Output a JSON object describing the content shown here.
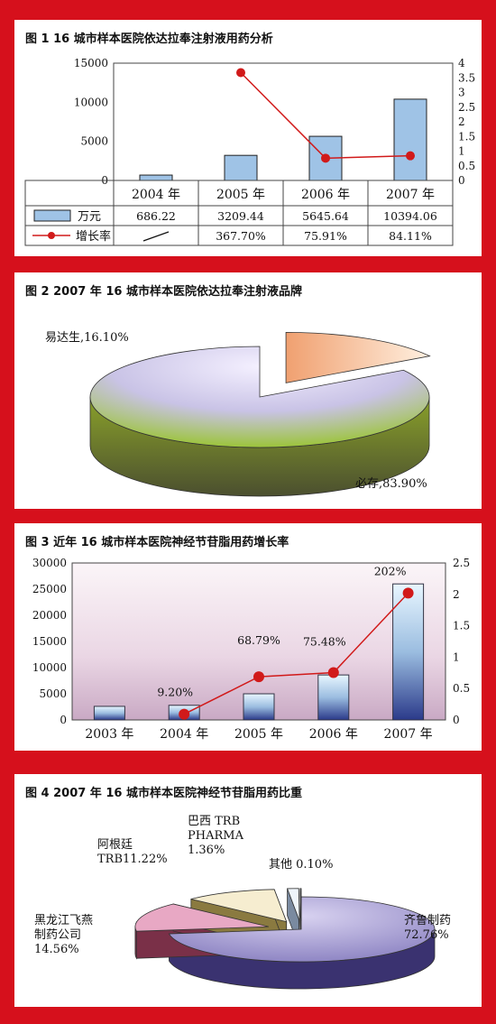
{
  "colors": {
    "border": "#d6101c",
    "bar1": "#9fc3e6",
    "line": "#d11a1a"
  },
  "chart_data": [
    {
      "type": "bar+line",
      "title": "图 1   16 城市样本医院依达拉奉注射液用药分析",
      "categories": [
        "2004 年",
        "2005 年",
        "2006 年",
        "2007 年"
      ],
      "series": [
        {
          "name": "万元",
          "type": "bar",
          "values": [
            686.22,
            3209.44,
            5645.64,
            10394.06
          ],
          "labels": [
            "686.22",
            "3209.44",
            "5645.64",
            "10394.06"
          ]
        },
        {
          "name": "增长率",
          "type": "line",
          "values": [
            null,
            3.677,
            0.7591,
            0.8411
          ],
          "labels": [
            "—",
            "367.70%",
            "75.91%",
            "84.11%"
          ]
        }
      ],
      "ylim": [
        0,
        15000
      ],
      "yticks": [
        "0",
        "5000",
        "10000",
        "15000"
      ],
      "y2lim": [
        0,
        4
      ],
      "y2ticks": [
        "0",
        "0.5",
        "1",
        "1.5",
        "2",
        "2.5",
        "3",
        "3.5",
        "4"
      ]
    },
    {
      "type": "pie",
      "title": "图 2   2007 年 16 城市样本医院依达拉奉注射液品牌",
      "slices": [
        {
          "label": "易达生,16.10%",
          "value": 16.1
        },
        {
          "label": "必存,83.90%",
          "value": 83.9
        }
      ]
    },
    {
      "type": "bar+line",
      "title": "图 3   近年 16 城市样本医院神经节苷脂用药增长率",
      "categories": [
        "2003 年",
        "2004 年",
        "2005 年",
        "2006 年",
        "2007 年"
      ],
      "series": [
        {
          "type": "bar",
          "values": [
            2600,
            2800,
            5000,
            8600,
            26000
          ]
        },
        {
          "type": "line",
          "values": [
            null,
            0.092,
            0.6879,
            0.7548,
            2.02
          ],
          "labels": [
            "",
            "9.20%",
            "68.79%",
            "75.48%",
            "202%"
          ]
        }
      ],
      "ylim": [
        0,
        30000
      ],
      "yticks": [
        "0",
        "5000",
        "10000",
        "15000",
        "20000",
        "25000",
        "30000"
      ],
      "y2lim": [
        0,
        2.5
      ],
      "y2ticks": [
        "0",
        "0.5",
        "1",
        "1.5",
        "2",
        "2.5"
      ]
    },
    {
      "type": "pie",
      "title": "图 4   2007 年 16 城市样本医院神经节苷脂用药比重",
      "slices": [
        {
          "label": "齐鲁制药|72.76%",
          "value": 72.76
        },
        {
          "label": "黑龙江飞燕|制药公司|14.56%",
          "value": 14.56
        },
        {
          "label": "阿根廷|TRB11.22%",
          "value": 11.22
        },
        {
          "label": "巴西 TRB|PHARMA|1.36%",
          "value": 1.36
        },
        {
          "label": "其他 0.10%",
          "value": 0.1
        }
      ]
    }
  ]
}
